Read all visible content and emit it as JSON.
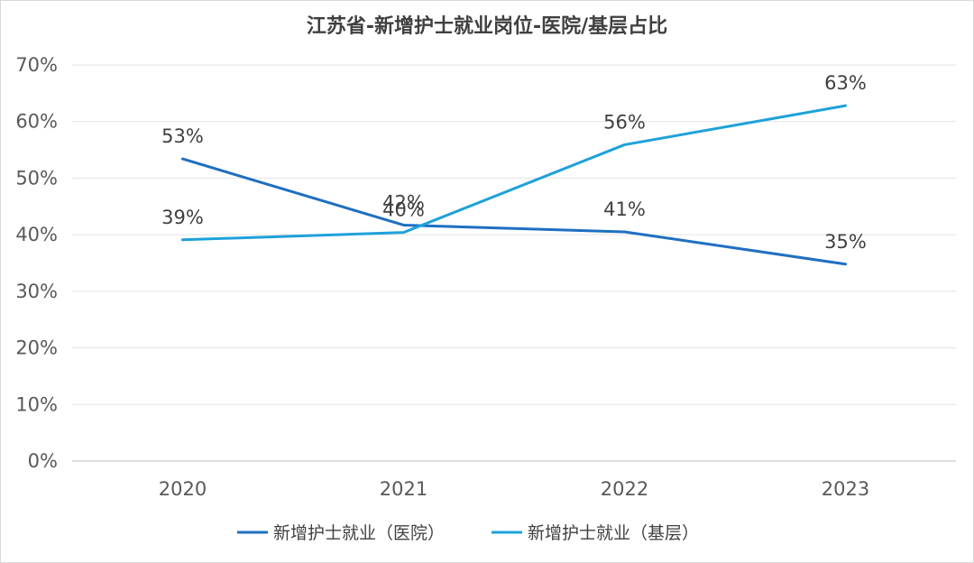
{
  "chart_data": {
    "type": "line",
    "title": "江苏省-新增护士就业岗位-医院/基层占比",
    "xlabel": "",
    "ylabel": "",
    "categories": [
      "2020",
      "2021",
      "2022",
      "2023"
    ],
    "ylim": [
      0,
      70
    ],
    "yticks": [
      0,
      10,
      20,
      30,
      40,
      50,
      60,
      70
    ],
    "ytick_labels": [
      "0%",
      "10%",
      "20%",
      "30%",
      "40%",
      "50%",
      "60%",
      "70%"
    ],
    "grid": true,
    "legend_position": "bottom",
    "series": [
      {
        "name": "新增护士就业（医院）",
        "color": "#1F6FC1",
        "values": [
          53.4,
          41.7,
          40.5,
          34.8
        ],
        "labels": [
          "53%",
          "42%",
          "41%",
          "35%"
        ]
      },
      {
        "name": "新增护士就业（基层）",
        "color": "#1EA1DA",
        "values": [
          39.1,
          40.4,
          55.9,
          62.8
        ],
        "labels": [
          "39%",
          "40%",
          "56%",
          "63%"
        ]
      }
    ]
  }
}
